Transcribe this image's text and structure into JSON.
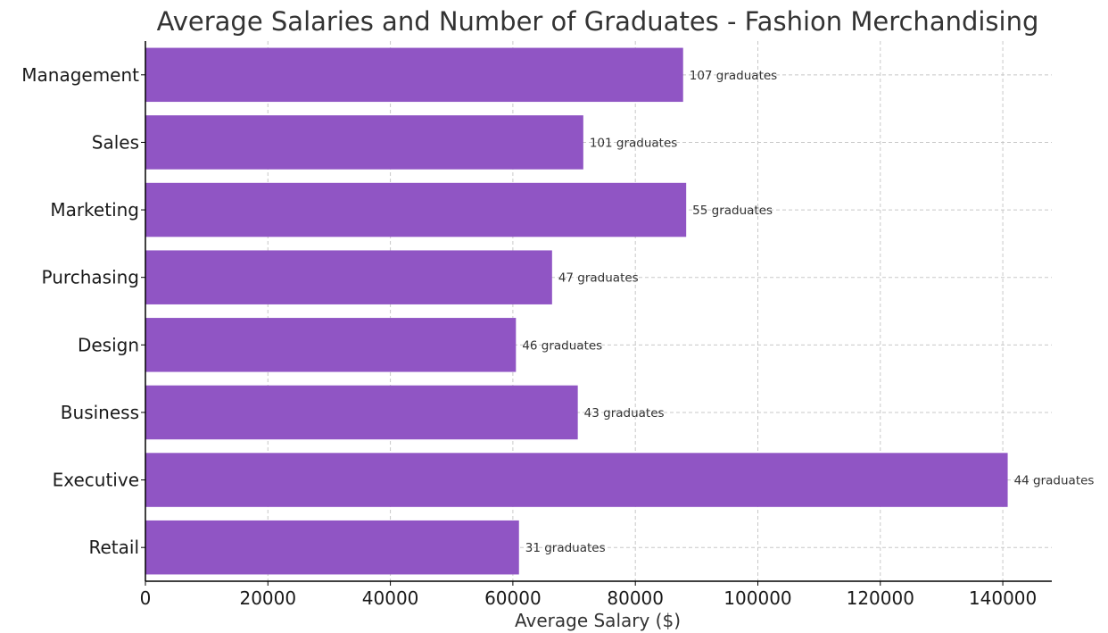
{
  "chart_data": {
    "type": "bar",
    "orientation": "horizontal",
    "title": "Average Salaries and Number of Graduates - Fashion Merchandising",
    "xlabel": "Average Salary ($)",
    "ylabel": "",
    "categories": [
      "Management",
      "Sales",
      "Marketing",
      "Purchasing",
      "Design",
      "Business",
      "Executive",
      "Retail"
    ],
    "values": [
      87800,
      71500,
      88300,
      66400,
      60500,
      70600,
      140800,
      61000
    ],
    "data_labels": [
      "107 graduates",
      "101 graduates",
      "55 graduates",
      "47 graduates",
      "46 graduates",
      "43 graduates",
      "44 graduates",
      "31 graduates"
    ],
    "xlim": [
      0,
      148000
    ],
    "xticks": [
      0,
      20000,
      40000,
      60000,
      80000,
      100000,
      120000,
      140000
    ],
    "xtick_labels": [
      "0",
      "20000",
      "40000",
      "60000",
      "80000",
      "100000",
      "120000",
      "140000"
    ],
    "bar_color": "#9055c4",
    "grid": true,
    "legend": "none"
  }
}
